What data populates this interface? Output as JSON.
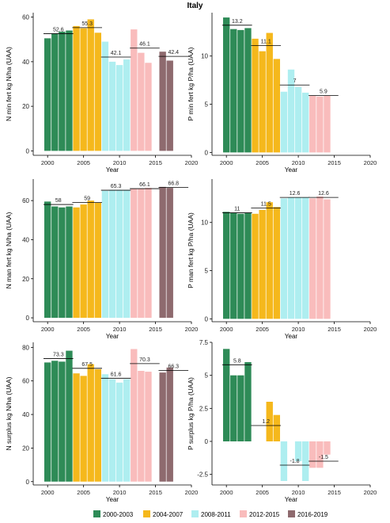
{
  "title": "Italy",
  "xlabel": "Year",
  "legend": [
    {
      "label": "2000-2003",
      "color": "#2e8b57"
    },
    {
      "label": "2004-2007",
      "color": "#f5b81c"
    },
    {
      "label": "2008-2011",
      "color": "#aeeef0"
    },
    {
      "label": "2012-2015",
      "color": "#f9bcbc"
    },
    {
      "label": "2016-2019",
      "color": "#8e6a6e"
    }
  ],
  "chart_data": [
    {
      "type": "bar",
      "ylabel": "N min fert kg N/ha (UAA)",
      "xlim": [
        1998,
        2020
      ],
      "ylim": [
        -2,
        62
      ],
      "yticks": [
        0,
        20,
        40,
        60
      ],
      "xticks": [
        2000,
        2005,
        2010,
        2015,
        2020
      ],
      "x": [
        2000,
        2001,
        2002,
        2003,
        2004,
        2005,
        2006,
        2007,
        2008,
        2009,
        2010,
        2011,
        2012,
        2013,
        2014,
        2016,
        2017
      ],
      "values": [
        50.5,
        52.5,
        53.5,
        54,
        56,
        55,
        59,
        53,
        49,
        40,
        38.5,
        41,
        54.5,
        44,
        39.5,
        44.5,
        40.5
      ],
      "period_means": [
        {
          "period": "2000-2003",
          "value": 52.6,
          "label": "52.6"
        },
        {
          "period": "2004-2007",
          "value": 55.3,
          "label": "55.3"
        },
        {
          "period": "2008-2011",
          "value": 42.1,
          "label": "42.1"
        },
        {
          "period": "2012-2015",
          "value": 46.1,
          "label": "46.1"
        },
        {
          "period": "2016-2019",
          "value": 42.4,
          "label": "42.4"
        }
      ]
    },
    {
      "type": "bar",
      "ylabel": "P min fert kg P/ha (UAA)",
      "xlim": [
        1998,
        2020
      ],
      "ylim": [
        -0.3,
        14.5
      ],
      "yticks": [
        0,
        5,
        10
      ],
      "xticks": [
        2000,
        2005,
        2010,
        2015,
        2020
      ],
      "x": [
        2000,
        2001,
        2002,
        2003,
        2004,
        2005,
        2006,
        2007,
        2008,
        2009,
        2010,
        2011,
        2012,
        2013,
        2014
      ],
      "values": [
        14,
        12.8,
        12.7,
        12.9,
        11.8,
        10.5,
        12.4,
        9.7,
        6.3,
        8.6,
        6.8,
        6.2,
        5.9,
        5.8,
        5.9
      ],
      "period_means": [
        {
          "period": "2000-2003",
          "value": 13.2,
          "label": "13.2"
        },
        {
          "period": "2004-2007",
          "value": 11.1,
          "label": "11.1"
        },
        {
          "period": "2008-2011",
          "value": 7,
          "label": "7"
        },
        {
          "period": "2012-2015",
          "value": 5.9,
          "label": "5.9"
        }
      ]
    },
    {
      "type": "bar",
      "ylabel": "N man fert kg N/ha (UAA)",
      "xlim": [
        1998,
        2020
      ],
      "ylim": [
        -2,
        71
      ],
      "yticks": [
        0,
        20,
        40,
        60
      ],
      "xticks": [
        2000,
        2005,
        2010,
        2015,
        2020
      ],
      "x": [
        2000,
        2001,
        2002,
        2003,
        2004,
        2005,
        2006,
        2007,
        2008,
        2009,
        2010,
        2011,
        2012,
        2013,
        2014,
        2016,
        2017
      ],
      "values": [
        59.5,
        57,
        56.5,
        57,
        56.5,
        58,
        60,
        59,
        65,
        65.5,
        65.5,
        65.5,
        66,
        66,
        66.5,
        67,
        66.5
      ],
      "period_means": [
        {
          "period": "2000-2003",
          "value": 58,
          "label": "58"
        },
        {
          "period": "2004-2007",
          "value": 59,
          "label": "59"
        },
        {
          "period": "2008-2011",
          "value": 65.3,
          "label": "65.3"
        },
        {
          "period": "2012-2015",
          "value": 66.1,
          "label": "66.1"
        },
        {
          "period": "2016-2019",
          "value": 66.8,
          "label": "66.8"
        }
      ]
    },
    {
      "type": "bar",
      "ylabel": "P man fert kg P/ha (UAA)",
      "xlim": [
        1998,
        2020
      ],
      "ylim": [
        -0.3,
        14.5
      ],
      "yticks": [
        0,
        5,
        10
      ],
      "xticks": [
        2000,
        2005,
        2010,
        2015,
        2020
      ],
      "x": [
        2000,
        2001,
        2002,
        2003,
        2004,
        2005,
        2006,
        2007,
        2008,
        2009,
        2010,
        2011,
        2012,
        2013,
        2014
      ],
      "values": [
        11.1,
        11,
        10.9,
        11,
        10.9,
        11.3,
        12.1,
        11.6,
        12.5,
        12.6,
        12.6,
        12.6,
        12.5,
        12.7,
        12.4
      ],
      "period_means": [
        {
          "period": "2000-2003",
          "value": 11,
          "label": "11"
        },
        {
          "period": "2004-2007",
          "value": 11.5,
          "label": "11.5"
        },
        {
          "period": "2008-2011",
          "value": 12.6,
          "label": "12.6"
        },
        {
          "period": "2012-2015",
          "value": 12.6,
          "label": "12.6"
        }
      ]
    },
    {
      "type": "bar",
      "ylabel": "N surplus kg N/ha (UAA)",
      "xlim": [
        1998,
        2020
      ],
      "ylim": [
        -2,
        83
      ],
      "yticks": [
        0,
        20,
        40,
        60,
        80
      ],
      "xticks": [
        2000,
        2005,
        2010,
        2015,
        2020
      ],
      "x": [
        2000,
        2001,
        2002,
        2003,
        2004,
        2005,
        2006,
        2007,
        2008,
        2009,
        2010,
        2011,
        2012,
        2013,
        2014,
        2016,
        2017
      ],
      "values": [
        71,
        72,
        71.5,
        78,
        64.5,
        63,
        70,
        67,
        64,
        61,
        59,
        61,
        79,
        66,
        65.5,
        65,
        68
      ],
      "period_means": [
        {
          "period": "2000-2003",
          "value": 73.3,
          "label": "73.3"
        },
        {
          "period": "2004-2007",
          "value": 67.5,
          "label": "67.5"
        },
        {
          "period": "2008-2011",
          "value": 61.6,
          "label": "61.6"
        },
        {
          "period": "2012-2015",
          "value": 70.3,
          "label": "70.3"
        },
        {
          "period": "2016-2019",
          "value": 66.3,
          "label": "66.3"
        }
      ]
    },
    {
      "type": "bar",
      "ylabel": "P surplus kg P/ha (UAA)",
      "xlim": [
        1998,
        2020
      ],
      "ylim": [
        -3.3,
        7.5
      ],
      "yticks": [
        -2.5,
        0,
        2.5,
        5,
        7.5
      ],
      "xticks": [
        2000,
        2005,
        2010,
        2015,
        2020
      ],
      "x": [
        2000,
        2001,
        2002,
        2003,
        2006,
        2007,
        2008,
        2010,
        2011,
        2012,
        2013,
        2014
      ],
      "values": [
        7,
        5,
        5,
        6,
        3,
        2,
        -3,
        -1.5,
        -3,
        -2,
        -2,
        -1
      ],
      "period_means": [
        {
          "period": "2000-2003",
          "value": 5.8,
          "label": "5.8"
        },
        {
          "period": "2004-2007",
          "value": 1.2,
          "label": "1.2"
        },
        {
          "period": "2008-2011",
          "value": -1.8,
          "label": "-1.8"
        },
        {
          "period": "2012-2015",
          "value": -1.5,
          "label": "-1.5"
        }
      ]
    }
  ]
}
